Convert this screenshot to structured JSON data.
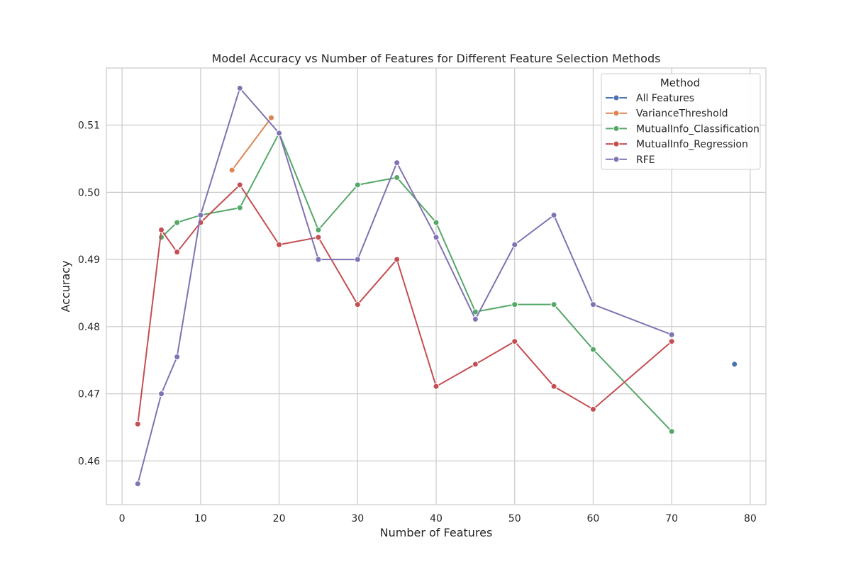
{
  "chart_data": {
    "type": "line",
    "title": "Model Accuracy vs Number of Features for Different Feature Selection Methods",
    "xlabel": "Number of Features",
    "ylabel": "Accuracy",
    "xlim": [
      -2,
      82
    ],
    "ylim": [
      0.4535,
      0.5185
    ],
    "xticks": [
      0,
      10,
      20,
      30,
      40,
      50,
      60,
      70,
      80
    ],
    "yticks": [
      0.46,
      0.47,
      0.48,
      0.49,
      0.5,
      0.51
    ],
    "ytick_labels": [
      "0.46",
      "0.47",
      "0.48",
      "0.49",
      "0.50",
      "0.51"
    ],
    "grid": true,
    "legend": {
      "title": "Method",
      "position": "top-right"
    },
    "series": [
      {
        "name": "All Features",
        "color": "#4c72b0",
        "x": [
          78
        ],
        "y": [
          0.4744
        ]
      },
      {
        "name": "VarianceThreshold",
        "color": "#dd8452",
        "x": [
          14,
          19
        ],
        "y": [
          0.5033,
          0.5111
        ]
      },
      {
        "name": "MutualInfo_Classification",
        "color": "#55a868",
        "x": [
          5,
          7,
          10,
          15,
          20,
          25,
          30,
          35,
          40,
          45,
          50,
          55,
          60,
          70
        ],
        "y": [
          0.4933,
          0.4955,
          0.4966,
          0.4977,
          0.5088,
          0.4944,
          0.5011,
          0.5022,
          0.4955,
          0.4822,
          0.4833,
          0.4833,
          0.4766,
          0.4644
        ]
      },
      {
        "name": "MutualInfo_Regression",
        "color": "#c44e52",
        "x": [
          2,
          5,
          7,
          10,
          15,
          20,
          25,
          30,
          35,
          40,
          45,
          50,
          55,
          60,
          70
        ],
        "y": [
          0.4655,
          0.4944,
          0.4911,
          0.4955,
          0.5011,
          0.4922,
          0.4933,
          0.4833,
          0.49,
          0.4711,
          0.4744,
          0.4778,
          0.4711,
          0.4677,
          0.4778
        ]
      },
      {
        "name": "RFE",
        "color": "#8172b3",
        "x": [
          2,
          5,
          7,
          10,
          15,
          20,
          25,
          30,
          35,
          40,
          45,
          50,
          55,
          60,
          70
        ],
        "y": [
          0.4566,
          0.47,
          0.4755,
          0.4966,
          0.5155,
          0.5088,
          0.49,
          0.49,
          0.5044,
          0.4933,
          0.4811,
          0.4922,
          0.4966,
          0.4833,
          0.4788
        ]
      }
    ]
  }
}
